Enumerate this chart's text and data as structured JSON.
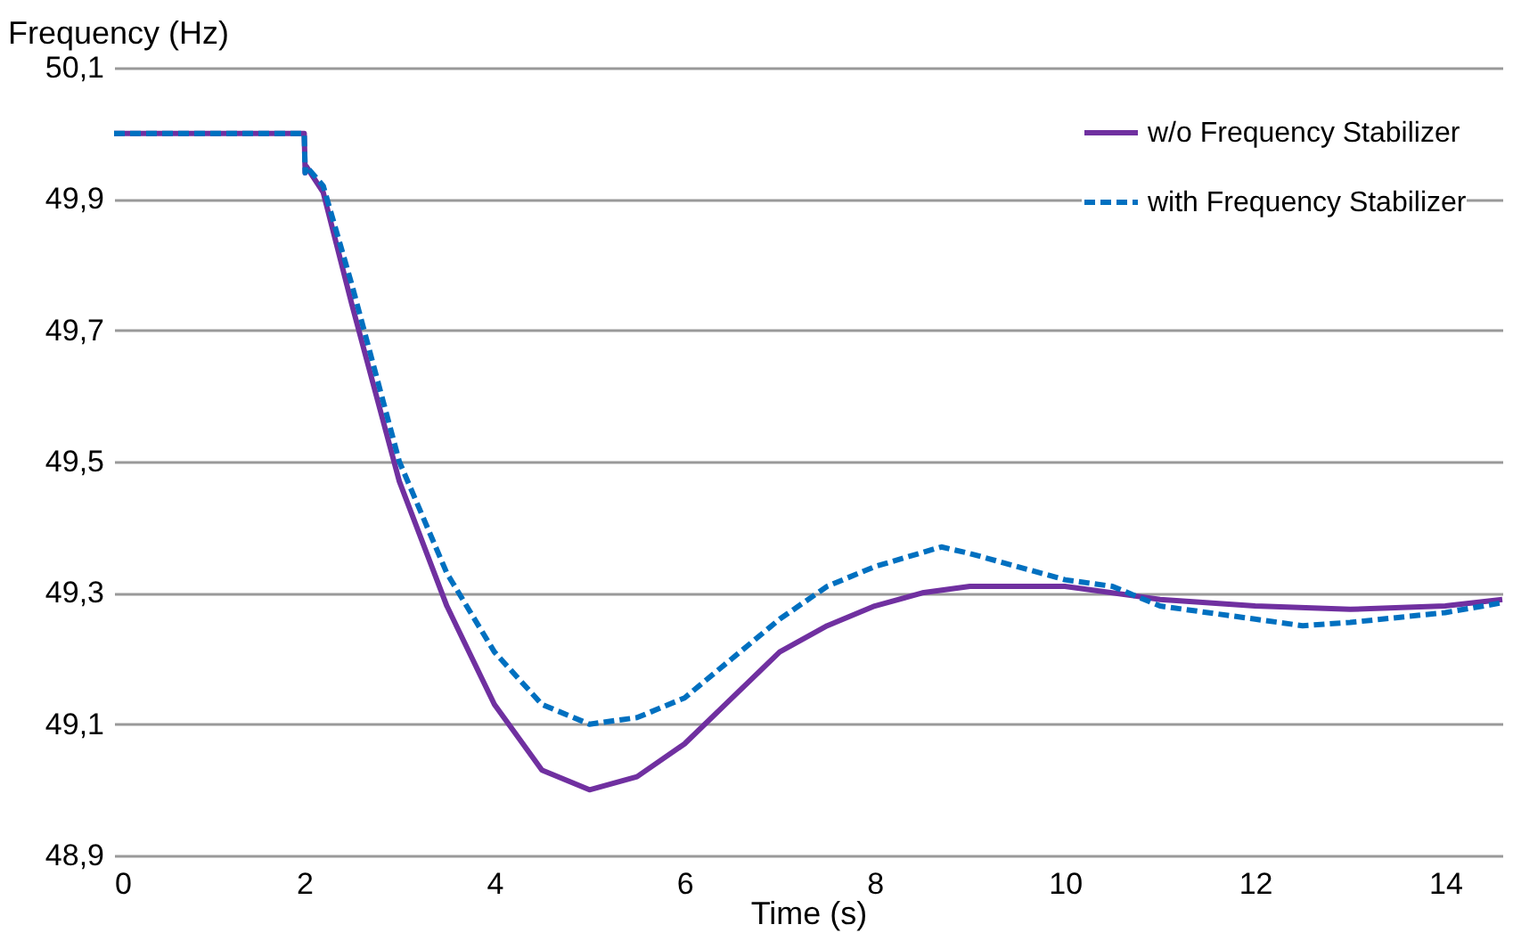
{
  "chart_data": {
    "type": "line",
    "xlabel": "Time (s)",
    "ylabel": "Frequency (Hz)",
    "xlim": [
      0,
      14.6
    ],
    "xticks": [
      0,
      2,
      4,
      6,
      8,
      10,
      12,
      14
    ],
    "ylim": [
      48.9,
      50.1
    ],
    "yticks": [
      {
        "value": 48.9,
        "label": "48,9"
      },
      {
        "value": 49.1,
        "label": "49,1"
      },
      {
        "value": 49.3,
        "label": "49,3"
      },
      {
        "value": 49.5,
        "label": "49,5"
      },
      {
        "value": 49.7,
        "label": "49,7"
      },
      {
        "value": 49.9,
        "label": "49,9"
      },
      {
        "value": 50.1,
        "label": "50,1"
      }
    ],
    "grid": "y",
    "legend": "top right",
    "series": [
      {
        "name": "w/o Frequency Stabilizer",
        "color": "#7030a0",
        "line_style": "solid",
        "x": [
          0,
          2,
          2.01,
          2.02,
          2.2,
          2.5,
          3,
          3.5,
          4,
          4.5,
          5,
          5.5,
          6,
          6.5,
          7,
          7.5,
          8,
          8.5,
          9,
          9.5,
          10,
          11,
          12,
          13,
          14,
          14.6
        ],
        "values": [
          50,
          50,
          49.94,
          49.95,
          49.91,
          49.74,
          49.47,
          49.28,
          49.13,
          49.03,
          49.0,
          49.02,
          49.07,
          49.14,
          49.21,
          49.25,
          49.28,
          49.3,
          49.31,
          49.31,
          49.31,
          49.29,
          49.28,
          49.275,
          49.28,
          49.29
        ]
      },
      {
        "name": "with Frequency Stabilizer",
        "color": "#0070c0",
        "line_style": "dashed",
        "x": [
          0,
          2,
          2.01,
          2.02,
          2.2,
          2.5,
          3,
          3.5,
          4,
          4.5,
          5,
          5.5,
          6,
          6.5,
          7,
          7.5,
          8,
          8.7,
          9,
          9.5,
          10,
          10.5,
          11,
          12,
          12.5,
          13,
          14,
          14.6
        ],
        "values": [
          50,
          50,
          49.94,
          49.95,
          49.92,
          49.77,
          49.5,
          49.33,
          49.21,
          49.13,
          49.1,
          49.11,
          49.14,
          49.2,
          49.26,
          49.31,
          49.34,
          49.37,
          49.36,
          49.34,
          49.32,
          49.31,
          49.28,
          49.26,
          49.25,
          49.255,
          49.27,
          49.285
        ]
      }
    ]
  }
}
